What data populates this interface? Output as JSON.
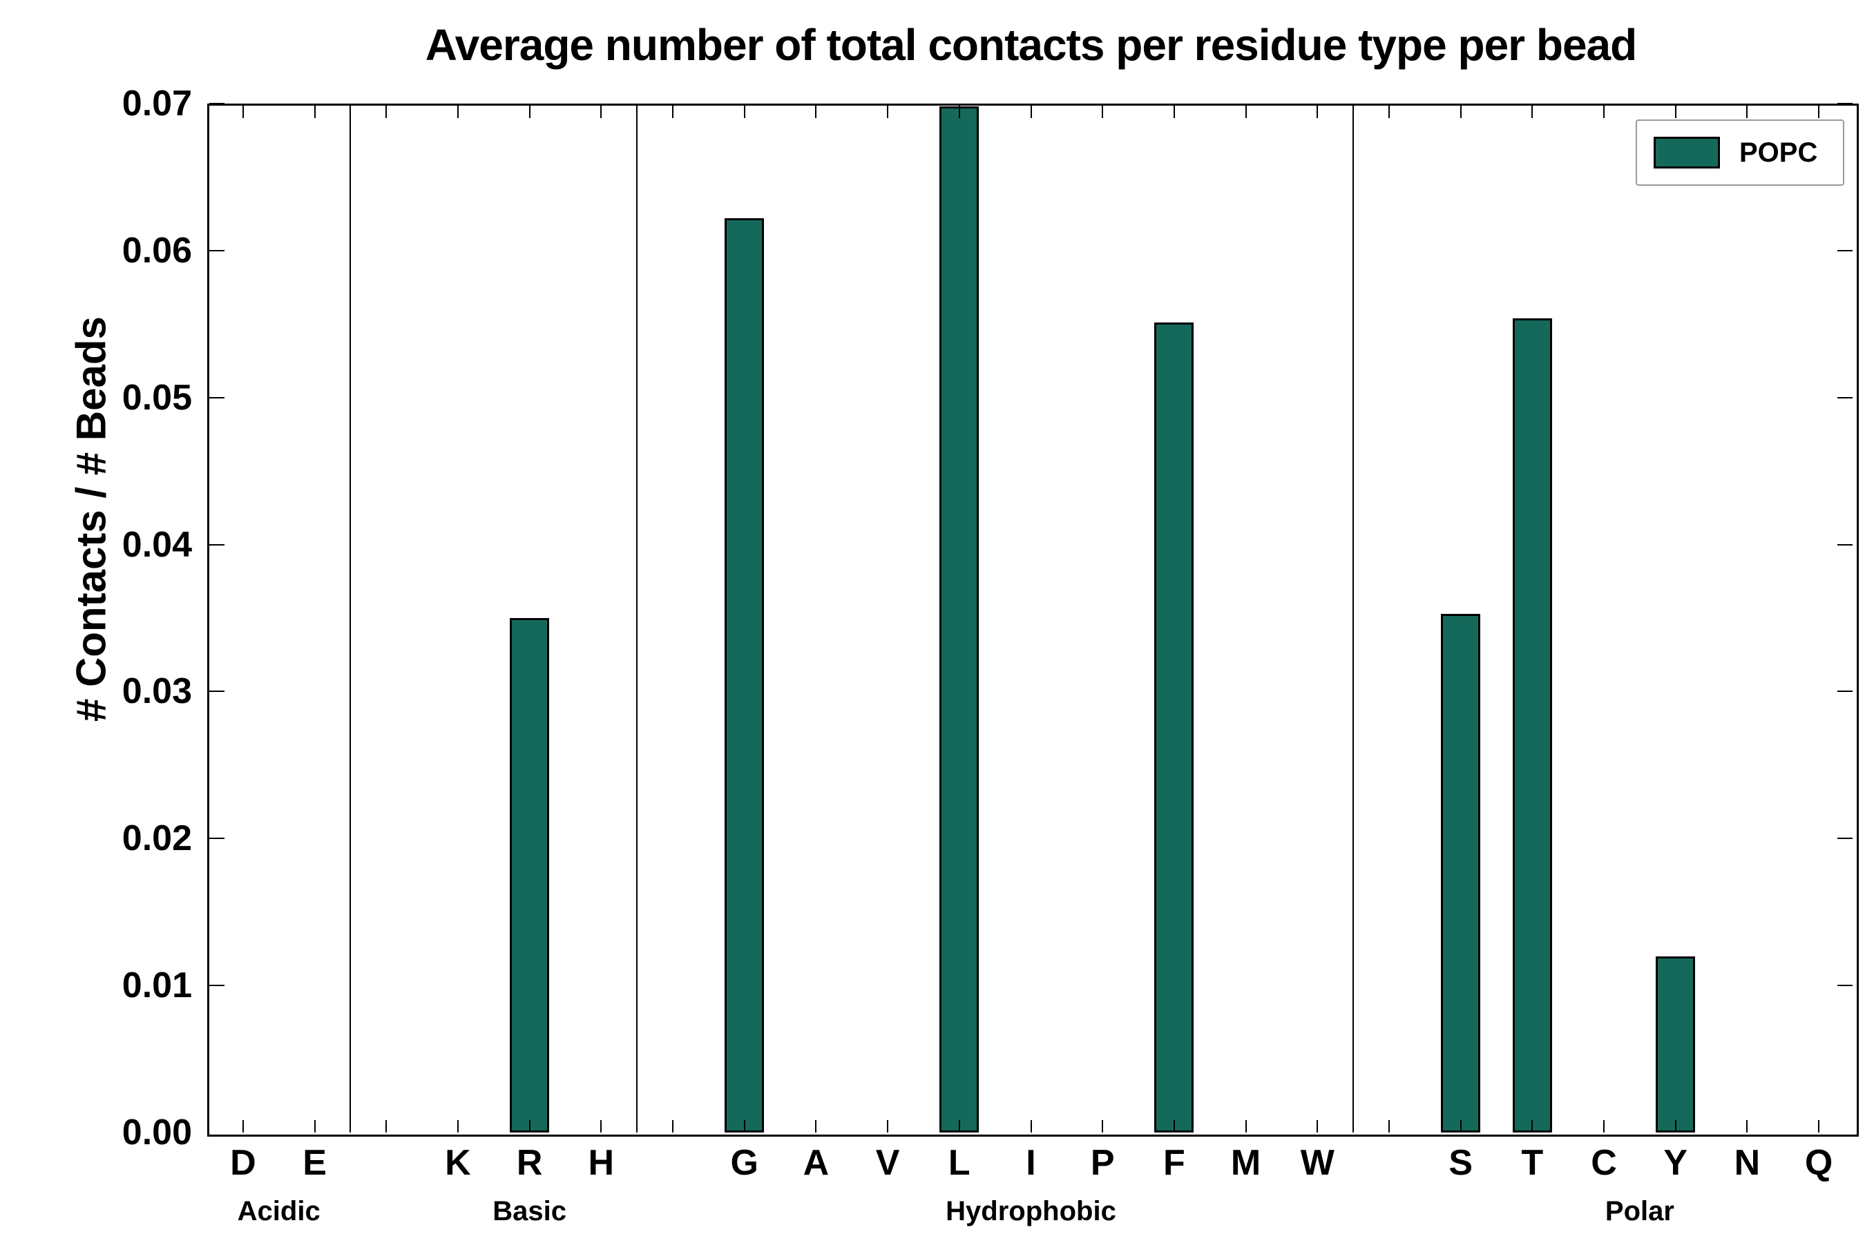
{
  "chart_data": {
    "type": "bar",
    "title": "Average number of total contacts per residue type per bead",
    "ylabel": "# Contacts / # Beads",
    "xlabel": "",
    "ylim": [
      0,
      0.07
    ],
    "yticks": [
      "0.00",
      "0.01",
      "0.02",
      "0.03",
      "0.04",
      "0.05",
      "0.06",
      "0.07"
    ],
    "grid": false,
    "legend": {
      "position": "upper right",
      "label": "POPC",
      "color": "#15695a"
    },
    "bar_color": "#15695a",
    "groups": [
      {
        "label": "Acidic",
        "categories": [
          "D",
          "E"
        ],
        "values": [
          0,
          0
        ]
      },
      {
        "label": "Basic",
        "categories": [
          "K",
          "R",
          "H"
        ],
        "values": [
          0,
          0.035,
          0
        ]
      },
      {
        "label": "Hydrophobic",
        "categories": [
          "G",
          "A",
          "V",
          "L",
          "I",
          "P",
          "F",
          "M",
          "W"
        ],
        "values": [
          0.0622,
          0,
          0,
          0.0698,
          0,
          0,
          0.0551,
          0,
          0
        ]
      },
      {
        "label": "Polar",
        "categories": [
          "S",
          "T",
          "C",
          "Y",
          "N",
          "Q"
        ],
        "values": [
          0.0353,
          0.0554,
          0,
          0.012,
          0,
          0
        ]
      }
    ]
  }
}
